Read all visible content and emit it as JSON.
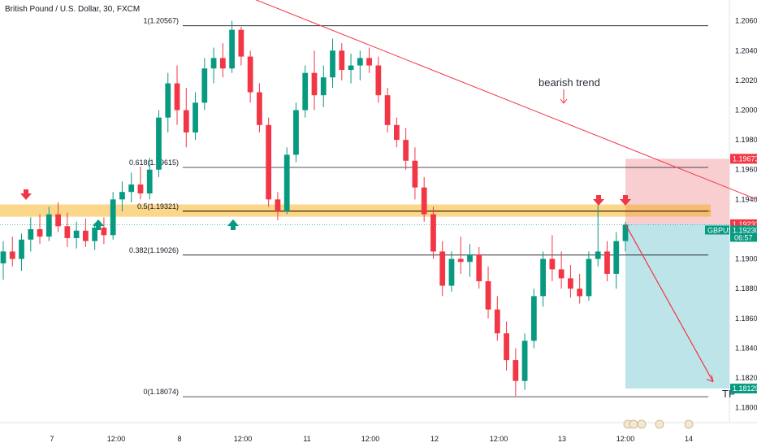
{
  "header": {
    "title": "British Pound / U.S. Dollar, 30, FXCM"
  },
  "chart_data": {
    "type": "candlestick",
    "symbol": "GBPUSD",
    "timeframe": "30",
    "ylim": [
      1.179,
      1.2074
    ],
    "y_ticks": [
      "1.20600",
      "1.20400",
      "1.20200",
      "1.20000",
      "1.19800",
      "1.19600",
      "1.19400",
      "1.19200",
      "1.19000",
      "1.18800",
      "1.18600",
      "1.18400",
      "1.18200",
      "1.18000"
    ],
    "x_ticks": [
      "7",
      "12:00",
      "8",
      "12:00",
      "11",
      "12:00",
      "12",
      "12:00",
      "13",
      "12:00",
      "14"
    ],
    "fib_levels": [
      {
        "label": "1(1.20567)",
        "value": 1.20567
      },
      {
        "label": "0.618(1.19615)",
        "value": 1.19615
      },
      {
        "label": "0.5(1.19321)",
        "value": 1.19321
      },
      {
        "label": "0.382(1.19026)",
        "value": 1.19026
      },
      {
        "label": "0(1.18074)",
        "value": 1.18074
      }
    ],
    "support_zone": [
      1.193,
      1.1935
    ],
    "trendline": {
      "start": {
        "x": 150,
        "y": 1.211
      },
      "end": {
        "x": 932,
        "y": 1.194
      }
    },
    "position": {
      "entry": 1.19233,
      "stop": 1.19673,
      "target": 1.18129
    },
    "price_tags": [
      {
        "value": "1.19673",
        "color": "#f23645"
      },
      {
        "value": "1.19233",
        "color": "#f23645"
      },
      {
        "value": "1.19230",
        "color": "#089981",
        "symbol": "GBPUSD",
        "countdown": "06:57"
      },
      {
        "value": "1.18129",
        "color": "#089981"
      }
    ],
    "annotation": {
      "text": "bearish trend",
      "value": 1.2022
    },
    "tp_label": "TP",
    "colors": {
      "up": "#089981",
      "down": "#f23645",
      "zone": "#f7a600",
      "trend": "#f23645",
      "stop_fill": "#f7c5c9",
      "target_fill": "#b2e0e5"
    },
    "candles": [
      [
        1.1897,
        1.1912,
        1.1886,
        1.1905
      ],
      [
        1.1905,
        1.1915,
        1.1895,
        1.19
      ],
      [
        1.19,
        1.1917,
        1.1892,
        1.1913
      ],
      [
        1.1913,
        1.1928,
        1.1905,
        1.192
      ],
      [
        1.192,
        1.193,
        1.191,
        1.1915
      ],
      [
        1.1915,
        1.1935,
        1.1912,
        1.193
      ],
      [
        1.193,
        1.1938,
        1.1918,
        1.1922
      ],
      [
        1.1922,
        1.1931,
        1.1908,
        1.1914
      ],
      [
        1.1914,
        1.1925,
        1.1907,
        1.1919
      ],
      [
        1.1919,
        1.1927,
        1.1908,
        1.1912
      ],
      [
        1.1912,
        1.1924,
        1.1906,
        1.1921
      ],
      [
        1.1921,
        1.1928,
        1.191,
        1.1916
      ],
      [
        1.1916,
        1.1945,
        1.1913,
        1.194
      ],
      [
        1.194,
        1.1952,
        1.1932,
        1.1945
      ],
      [
        1.1945,
        1.1958,
        1.1938,
        1.195
      ],
      [
        1.195,
        1.1962,
        1.194,
        1.1944
      ],
      [
        1.1944,
        1.1968,
        1.194,
        1.196
      ],
      [
        1.196,
        1.2,
        1.1955,
        1.1995
      ],
      [
        1.1995,
        1.2025,
        1.1985,
        1.2018
      ],
      [
        1.2018,
        1.203,
        1.199,
        1.2
      ],
      [
        1.2,
        1.2015,
        1.1975,
        1.1985
      ],
      [
        1.1985,
        1.2012,
        1.198,
        1.2005
      ],
      [
        1.2005,
        1.2035,
        1.2,
        1.2028
      ],
      [
        1.2028,
        1.2042,
        1.2018,
        1.2035
      ],
      [
        1.2035,
        1.2045,
        1.2022,
        1.2028
      ],
      [
        1.2028,
        1.206,
        1.2025,
        1.2054
      ],
      [
        1.2054,
        1.2056,
        1.203,
        1.2036
      ],
      [
        1.2036,
        1.204,
        1.2005,
        1.2012
      ],
      [
        1.2012,
        1.2018,
        1.1985,
        1.199
      ],
      [
        1.199,
        1.1995,
        1.1935,
        1.194
      ],
      [
        1.194,
        1.1945,
        1.1926,
        1.1932
      ],
      [
        1.1932,
        1.1975,
        1.193,
        1.197
      ],
      [
        1.197,
        1.2005,
        1.1965,
        1.2
      ],
      [
        1.2,
        1.203,
        1.1995,
        1.2025
      ],
      [
        1.2025,
        1.204,
        1.2,
        1.201
      ],
      [
        1.201,
        1.203,
        1.2002,
        1.2022
      ],
      [
        1.2022,
        1.2048,
        1.2015,
        1.204
      ],
      [
        1.204,
        1.2045,
        1.202,
        1.2027
      ],
      [
        1.2027,
        1.2038,
        1.2018,
        1.203
      ],
      [
        1.203,
        1.204,
        1.202,
        1.2035
      ],
      [
        1.2035,
        1.2042,
        1.2025,
        1.203
      ],
      [
        1.203,
        1.2036,
        1.2005,
        1.201
      ],
      [
        1.201,
        1.2015,
        1.1985,
        1.199
      ],
      [
        1.199,
        1.1995,
        1.1975,
        1.198
      ],
      [
        1.198,
        1.1988,
        1.196,
        1.1966
      ],
      [
        1.1966,
        1.1975,
        1.194,
        1.1948
      ],
      [
        1.1948,
        1.1955,
        1.1925,
        1.193
      ],
      [
        1.193,
        1.1935,
        1.19,
        1.1905
      ],
      [
        1.1905,
        1.1912,
        1.1875,
        1.1882
      ],
      [
        1.1882,
        1.1905,
        1.1878,
        1.19
      ],
      [
        1.19,
        1.1915,
        1.189,
        1.1898
      ],
      [
        1.1898,
        1.191,
        1.1888,
        1.1903
      ],
      [
        1.1903,
        1.1908,
        1.188,
        1.1885
      ],
      [
        1.1885,
        1.1895,
        1.186,
        1.1866
      ],
      [
        1.1866,
        1.1875,
        1.1845,
        1.185
      ],
      [
        1.185,
        1.1858,
        1.1825,
        1.1832
      ],
      [
        1.1832,
        1.184,
        1.1808,
        1.1818
      ],
      [
        1.1818,
        1.185,
        1.1812,
        1.1845
      ],
      [
        1.1845,
        1.188,
        1.184,
        1.1875
      ],
      [
        1.1875,
        1.1905,
        1.1868,
        1.19
      ],
      [
        1.19,
        1.1916,
        1.1885,
        1.1893
      ],
      [
        1.1893,
        1.1905,
        1.188,
        1.1887
      ],
      [
        1.1887,
        1.1896,
        1.1874,
        1.188
      ],
      [
        1.188,
        1.189,
        1.187,
        1.1875
      ],
      [
        1.1875,
        1.1905,
        1.1872,
        1.19
      ],
      [
        1.19,
        1.1936,
        1.1895,
        1.1905
      ],
      [
        1.1905,
        1.1912,
        1.1885,
        1.189
      ],
      [
        1.189,
        1.1918,
        1.188,
        1.1912
      ],
      [
        1.1912,
        1.1925,
        1.1905,
        1.1923
      ]
    ]
  }
}
